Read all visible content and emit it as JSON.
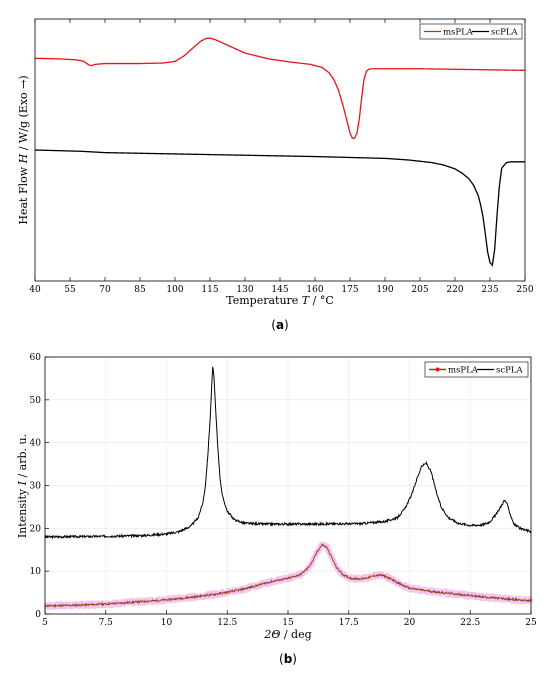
{
  "chart_data": [
    {
      "type": "line",
      "panel_label": "(a)",
      "panel_letter": "a",
      "xlabel": "Temperature T / °C",
      "xlabel_parts": [
        "Temperature ",
        "T",
        " / °C"
      ],
      "ylabel": "Heat Flow H / W/g (Exo →)",
      "ylabel_parts": [
        "Heat Flow ",
        "H",
        " / W/g (Exo →)"
      ],
      "xlim": [
        40,
        250
      ],
      "xticks": [
        40,
        55,
        70,
        85,
        100,
        115,
        130,
        145,
        160,
        175,
        190,
        205,
        220,
        235,
        250
      ],
      "yticks_shown": false,
      "grid": false,
      "legend": "top-right",
      "series": [
        {
          "name": "msPLA",
          "color": "#e8141c",
          "x": [
            40,
            50,
            58,
            61,
            63,
            64,
            66,
            70,
            85,
            95,
            100,
            104,
            108,
            111,
            113,
            115,
            117,
            120,
            125,
            130,
            140,
            150,
            158,
            163,
            166,
            168,
            170,
            172,
            174,
            175,
            176,
            177,
            178,
            179,
            180,
            181,
            182,
            183,
            184,
            190,
            205,
            220,
            235,
            250
          ],
          "y": [
            0.85,
            0.848,
            0.844,
            0.838,
            0.825,
            0.822,
            0.827,
            0.83,
            0.83,
            0.832,
            0.838,
            0.86,
            0.892,
            0.915,
            0.925,
            0.927,
            0.922,
            0.91,
            0.89,
            0.87,
            0.848,
            0.835,
            0.827,
            0.815,
            0.795,
            0.77,
            0.73,
            0.67,
            0.6,
            0.565,
            0.545,
            0.545,
            0.565,
            0.62,
            0.7,
            0.77,
            0.8,
            0.808,
            0.81,
            0.81,
            0.81,
            0.808,
            0.806,
            0.804
          ]
        },
        {
          "name": "scPLA",
          "color": "#000000",
          "x": [
            40,
            60,
            70,
            100,
            130,
            160,
            190,
            200,
            210,
            215,
            220,
            223,
            226,
            228,
            230,
            231,
            232,
            233,
            234,
            235,
            236,
            237,
            238,
            239,
            240,
            242,
            244,
            250
          ],
          "y": [
            0.5,
            0.495,
            0.49,
            0.485,
            0.48,
            0.475,
            0.468,
            0.462,
            0.452,
            0.443,
            0.428,
            0.412,
            0.39,
            0.365,
            0.325,
            0.29,
            0.245,
            0.18,
            0.11,
            0.07,
            0.06,
            0.12,
            0.25,
            0.36,
            0.43,
            0.452,
            0.455,
            0.455
          ]
        }
      ]
    },
    {
      "type": "line",
      "panel_label": "(b)",
      "panel_letter": "b",
      "xlabel": "2Θ / deg",
      "xlabel_parts": [
        "2Θ",
        " / deg"
      ],
      "ylabel": "Intensity I / arb. u.",
      "ylabel_parts": [
        "Intensity ",
        "I",
        " / arb. u."
      ],
      "xlim": [
        5,
        25
      ],
      "ylim": [
        0,
        60
      ],
      "xticks": [
        5,
        7.5,
        10,
        12.5,
        15,
        17.5,
        20,
        22.5,
        25
      ],
      "xtick_labels": [
        "5",
        "7.5",
        "10",
        "12.5",
        "15",
        "17.5",
        "20",
        "22.5",
        "25"
      ],
      "yticks": [
        0,
        10,
        20,
        30,
        40,
        50,
        60
      ],
      "grid": true,
      "legend": "top-right",
      "series": [
        {
          "name": "msPLA",
          "color": "#8b4513",
          "band_color": "#f5b8f0",
          "x": [
            5,
            6,
            7,
            8,
            9,
            10,
            11,
            12,
            13,
            13.5,
            14,
            14.5,
            15,
            15.5,
            15.8,
            16,
            16.2,
            16.4,
            16.6,
            16.8,
            17,
            17.3,
            17.6,
            18,
            18.3,
            18.6,
            18.8,
            19,
            19.3,
            19.6,
            20,
            21,
            22,
            23,
            24,
            25
          ],
          "y": [
            1.9,
            2.0,
            2.2,
            2.5,
            2.9,
            3.3,
            3.9,
            4.6,
            5.6,
            6.3,
            7.1,
            7.8,
            8.3,
            9.2,
            10.6,
            12.2,
            14.5,
            16.2,
            15.5,
            13.2,
            10.8,
            9.0,
            8.3,
            8.2,
            8.5,
            9.0,
            9.1,
            8.8,
            8.0,
            7.0,
            6.0,
            5.2,
            4.6,
            4.0,
            3.5,
            3.1
          ]
        },
        {
          "name": "scPLA",
          "color": "#000000",
          "x": [
            5,
            7,
            9,
            10,
            10.5,
            11,
            11.3,
            11.5,
            11.6,
            11.7,
            11.8,
            11.85,
            11.9,
            11.95,
            12,
            12.1,
            12.2,
            12.3,
            12.5,
            12.8,
            13.2,
            14,
            16,
            18,
            19,
            19.5,
            19.8,
            20.1,
            20.3,
            20.5,
            20.7,
            20.9,
            21.1,
            21.3,
            21.6,
            22,
            22.5,
            23,
            23.3,
            23.6,
            23.8,
            23.9,
            24,
            24.1,
            24.3,
            24.6,
            25
          ],
          "y": [
            18.0,
            18.1,
            18.3,
            18.7,
            19.2,
            20.5,
            22.5,
            26.0,
            30.0,
            37.0,
            46.0,
            52.0,
            57.5,
            56.0,
            50.0,
            40.0,
            32.0,
            27.5,
            24.0,
            22.0,
            21.2,
            21.0,
            21.0,
            21.1,
            21.6,
            22.5,
            24.5,
            28.0,
            31.5,
            34.5,
            35.2,
            33.0,
            28.5,
            25.0,
            22.5,
            21.2,
            20.7,
            20.8,
            21.5,
            23.5,
            25.5,
            26.5,
            26.0,
            24.0,
            21.0,
            19.8,
            19.3
          ]
        }
      ]
    }
  ]
}
